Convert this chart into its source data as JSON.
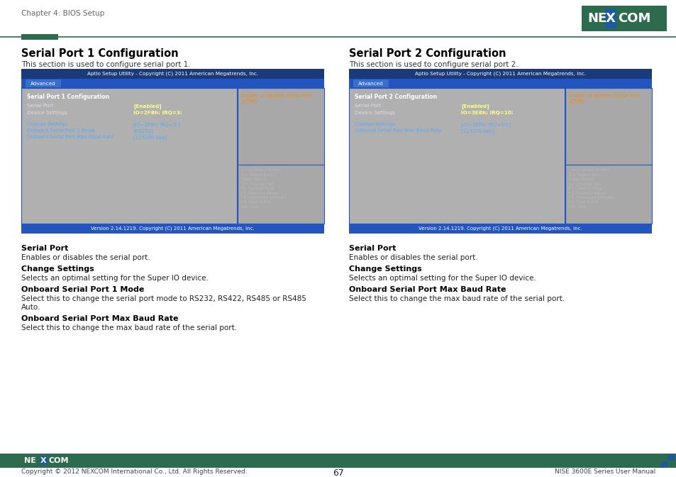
{
  "page_header": "Chapter 4: BIOS Setup",
  "page_number": "67",
  "footer_left": "Copyright © 2012 NEXCOM International Co., Ltd. All Rights Reserved.",
  "footer_right": "NISE 3600E Series User Manual",
  "nexcom_bg_green": "#2d6b4f",
  "nexcom_bg_blue": "#1a5aa0",
  "accent_bar_color": "#2d6b4f",
  "bios_title_bg": "#1a3a7a",
  "bios_tab_row_bg": "#2255c0",
  "bios_tab_btn_bg": "#3a6ecc",
  "bios_body_bg": "#b0b0b0",
  "bios_right_bg": "#a8a8a8",
  "bios_divider": "#2255c0",
  "bios_footer_bg": "#2255c0",
  "bios_main_title_color": "#ffffff",
  "bios_item_label_color": "#ccccee",
  "bios_item_value_color": "#ffff88",
  "bios_subitem_color": "#55aaff",
  "bios_right_title_color": "#ff8800",
  "bios_keyhelp_color": "#bbbbbb",
  "bios_footer_color": "#ffffff",
  "section1_title": "Serial Port 1 Configuration",
  "section1_desc": "This section is used to configure serial port 1.",
  "section2_title": "Serial Port 2 Configuration",
  "section2_desc": "This section is used to configure serial port 2.",
  "bios_header_text": "Aptio Setup Utility - Copyright (C) 2011 American Megatrends, Inc.",
  "bios_tab": "Advanced",
  "bios1_main_title": "Serial Port 1 Configuration",
  "bios1_items": [
    [
      "Serial Port",
      "[Enabled]"
    ],
    [
      "Device Settings",
      "IO=2F8h; IRQ=3;"
    ]
  ],
  "bios1_sub_items": [
    [
      "Change Settings",
      "[IO=2F8h; IRQ=3;]"
    ],
    [
      "Onboard Serial Port 1 Mode",
      "[RS232]"
    ],
    [
      "Onboard Serial Port Max Baud Rate",
      "[115200 bps]"
    ]
  ],
  "bios1_right_title": "Enable or Disable Serial Port\n(COM)",
  "bios1_footer": "Version 2.14.1219. Copyright (C) 2011 American Megatrends, Inc.",
  "bios2_main_title": "Serial Port 2 Configuration",
  "bios2_items": [
    [
      "Serial Port",
      "[Enabled]"
    ],
    [
      "Device Settings",
      "IO=3E8h; IRQ=10;"
    ]
  ],
  "bios2_sub_items": [
    [
      "Change Settings",
      "[IO=3E8h; IRQ=10;]"
    ],
    [
      "Onboard Serial Port Max Baud Rate",
      "[115200 bps]"
    ]
  ],
  "bios2_right_title": "Enable or Disable Serial Port\n(COM)",
  "bios2_footer": "Version 2.14.1219. Copyright (C) 2011 American Megatrends, Inc.",
  "key_help": [
    "--<->: Select Screen",
    "↑↓: Select Item",
    "Enter: Select",
    "+/-: Change Opt.",
    "F1: General Help",
    "F2: Previous Values",
    "F3: Optimized Defaults",
    "F4: Save & Exit",
    "ESC: Exit"
  ],
  "desc_sections1": [
    {
      "heading": "Serial Port",
      "text": "Enables or disables the serial port."
    },
    {
      "heading": "Change Settings",
      "text": "Selects an optimal setting for the Super IO device."
    },
    {
      "heading": "Onboard Serial Port 1 Mode",
      "text": "Select this to change the serial port mode to RS232, RS422, RS485 or RS485\nAuto."
    },
    {
      "heading": "Onboard Serial Port Max Baud Rate",
      "text": "Select this to change the max baud rate of the serial port."
    }
  ],
  "desc_sections2": [
    {
      "heading": "Serial Port",
      "text": "Enables or disables the serial port."
    },
    {
      "heading": "Change Settings",
      "text": "Selects an optimal setting for the Super IO device."
    },
    {
      "heading": "Onboard Serial Port Max Baud Rate",
      "text": "Select this to change the max baud rate of the serial port."
    }
  ],
  "background_color": "#ffffff"
}
